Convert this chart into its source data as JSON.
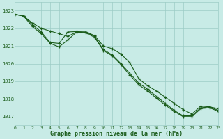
{
  "title": "Graphe pression niveau de la mer (hPa)",
  "background_color": "#c8ebe6",
  "grid_color": "#9cccc5",
  "line_color": "#1a5c1a",
  "xlim": [
    0,
    23
  ],
  "ylim": [
    1016.5,
    1023.5
  ],
  "yticks": [
    1017,
    1018,
    1019,
    1020,
    1021,
    1022,
    1023
  ],
  "xticks": [
    0,
    1,
    2,
    3,
    4,
    5,
    6,
    7,
    8,
    9,
    10,
    11,
    12,
    13,
    14,
    15,
    16,
    17,
    18,
    19,
    20,
    21,
    22,
    23
  ],
  "series1": [
    1022.8,
    1022.7,
    1022.3,
    1022.0,
    1021.85,
    1021.7,
    1021.55,
    1021.8,
    1021.8,
    1021.6,
    1021.0,
    1020.85,
    1020.55,
    1020.05,
    1019.15,
    1018.75,
    1018.45,
    1018.1,
    1017.75,
    1017.4,
    1017.15,
    1017.6,
    1017.55,
    1017.45
  ],
  "series2": [
    1022.8,
    1022.7,
    1022.2,
    1021.8,
    1021.2,
    1021.15,
    1021.8,
    1021.82,
    1021.78,
    1021.55,
    1020.8,
    1020.5,
    1020.0,
    1019.45,
    1018.9,
    1018.55,
    1018.15,
    1017.75,
    1017.35,
    1017.05,
    1017.05,
    1017.5,
    1017.55,
    1017.35
  ],
  "series3": [
    1022.8,
    1022.7,
    1022.1,
    1021.7,
    1021.15,
    1020.95,
    1021.35,
    1021.8,
    1021.75,
    1021.5,
    1020.75,
    1020.45,
    1019.95,
    1019.35,
    1018.8,
    1018.45,
    1018.05,
    1017.65,
    1017.3,
    1017.0,
    1017.0,
    1017.45,
    1017.5,
    1017.3
  ]
}
